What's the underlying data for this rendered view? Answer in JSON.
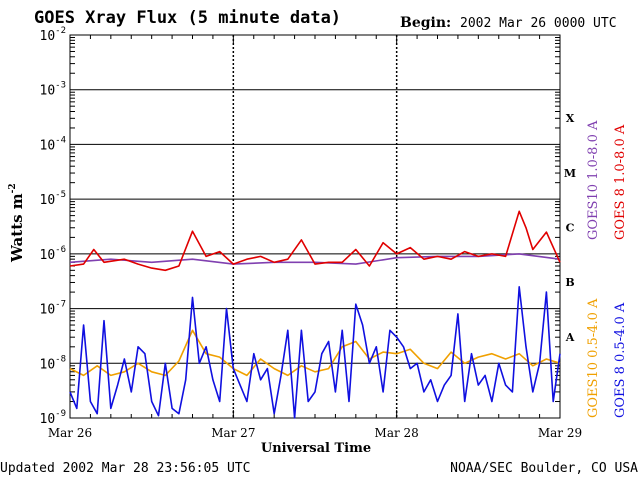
{
  "chart_data": {
    "type": "line",
    "title": "GOES Xray Flux (5 minute data)",
    "begin_label": "Begin:",
    "begin_value": "2002 Mar 26 0000 UTC",
    "xlabel": "Universal Time",
    "ylabel": "Watts m",
    "ylabel_sup": "-2",
    "y_scale": "log",
    "ylim": [
      1e-09,
      0.01
    ],
    "y_ticks": [
      {
        "exp": "-2"
      },
      {
        "exp": "-3"
      },
      {
        "exp": "-4"
      },
      {
        "exp": "-5"
      },
      {
        "exp": "-6"
      },
      {
        "exp": "-7"
      },
      {
        "exp": "-8"
      },
      {
        "exp": "-9"
      }
    ],
    "y_tick_base": "10",
    "x_ticks": [
      "Mar 26",
      "Mar 27",
      "Mar 28",
      "Mar 29"
    ],
    "xlim_hours": [
      0,
      72
    ],
    "flare_classes": [
      "X",
      "M",
      "C",
      "B",
      "A"
    ],
    "grid": true,
    "legend_placement": "right-vertical",
    "series": [
      {
        "name": "GOES10 1.0-8.0 A",
        "color": "#8040b0",
        "x": [
          0,
          6,
          12,
          18,
          24,
          30,
          36,
          42,
          48,
          54,
          60,
          66,
          72
        ],
        "y": [
          7e-07,
          8e-07,
          7e-07,
          8e-07,
          6.5e-07,
          7e-07,
          7e-07,
          6.5e-07,
          8.5e-07,
          9e-07,
          9e-07,
          1e-06,
          8e-07
        ]
      },
      {
        "name": "GOES 8 1.0-8.0 A",
        "color": "#e00000",
        "x": [
          0,
          2,
          3.5,
          5,
          8,
          10,
          12,
          14,
          16,
          18,
          20,
          22,
          24,
          26,
          28,
          30,
          32,
          34,
          36,
          38,
          40,
          42,
          44,
          46,
          48,
          50,
          52,
          54,
          56,
          58,
          60,
          62,
          64,
          66,
          67,
          68,
          70,
          72
        ],
        "y": [
          6e-07,
          6.5e-07,
          1.2e-06,
          7e-07,
          8e-07,
          6.5e-07,
          5.5e-07,
          5e-07,
          6e-07,
          2.6e-06,
          9e-07,
          1.1e-06,
          6.5e-07,
          8e-07,
          9e-07,
          7e-07,
          8e-07,
          1.8e-06,
          6.5e-07,
          7e-07,
          7e-07,
          1.2e-06,
          6e-07,
          1.6e-06,
          1e-06,
          1.3e-06,
          8e-07,
          9e-07,
          8e-07,
          1.1e-06,
          9e-07,
          1e-06,
          9e-07,
          6e-06,
          3e-06,
          1.2e-06,
          2.5e-06,
          7e-07
        ]
      },
      {
        "name": "GOES10 0.5-4.0 A",
        "color": "#f0a000",
        "x": [
          0,
          2,
          4,
          6,
          8,
          10,
          12,
          14,
          16,
          18,
          20,
          22,
          24,
          26,
          28,
          30,
          32,
          34,
          36,
          38,
          40,
          42,
          44,
          46,
          48,
          50,
          52,
          54,
          56,
          58,
          60,
          62,
          64,
          66,
          68,
          70,
          72
        ],
        "y": [
          8e-09,
          6e-09,
          9e-09,
          6e-09,
          7e-09,
          1e-08,
          7e-09,
          6e-09,
          1.1e-08,
          4e-08,
          1.5e-08,
          1.3e-08,
          8e-09,
          6e-09,
          1.2e-08,
          8e-09,
          6e-09,
          9e-09,
          7e-09,
          8e-09,
          2e-08,
          2.5e-08,
          1.2e-08,
          1.6e-08,
          1.5e-08,
          1.8e-08,
          1e-08,
          8e-09,
          1.6e-08,
          1e-08,
          1.3e-08,
          1.5e-08,
          1.2e-08,
          1.5e-08,
          9e-09,
          1.2e-08,
          1e-08
        ]
      },
      {
        "name": "GOES 8 0.5-4.0 A",
        "color": "#1010e0",
        "x": [
          0,
          1,
          2,
          3,
          4,
          5,
          6,
          7,
          8,
          9,
          10,
          11,
          12,
          13,
          14,
          15,
          16,
          17,
          18,
          19,
          20,
          21,
          22,
          23,
          24,
          25,
          26,
          27,
          28,
          29,
          30,
          31,
          32,
          33,
          34,
          35,
          36,
          37,
          38,
          39,
          40,
          41,
          42,
          43,
          44,
          45,
          46,
          47,
          48,
          49,
          50,
          51,
          52,
          53,
          54,
          55,
          56,
          57,
          58,
          59,
          60,
          61,
          62,
          63,
          64,
          65,
          66,
          67,
          68,
          69,
          70,
          71,
          72
        ],
        "y": [
          3e-09,
          1.5e-09,
          5e-08,
          2e-09,
          1.2e-09,
          6e-08,
          1.5e-09,
          4e-09,
          1.2e-08,
          3e-09,
          2e-08,
          1.5e-08,
          2e-09,
          1.1e-09,
          1e-08,
          1.5e-09,
          1.2e-09,
          5e-09,
          1.6e-07,
          1e-08,
          2e-08,
          5e-09,
          2e-09,
          1e-07,
          8e-09,
          4e-09,
          2e-09,
          1.5e-08,
          5e-09,
          8e-09,
          1.2e-09,
          6e-09,
          4e-08,
          1e-09,
          4e-08,
          2e-09,
          3e-09,
          1.5e-08,
          2.5e-08,
          3e-09,
          4e-08,
          2e-09,
          1.2e-07,
          5e-08,
          1e-08,
          2e-08,
          3e-09,
          4e-08,
          3e-08,
          2e-08,
          8e-09,
          1e-08,
          3e-09,
          5e-09,
          2e-09,
          4e-09,
          6e-09,
          8e-08,
          2e-09,
          1.5e-08,
          4e-09,
          6e-09,
          2e-09,
          1e-08,
          4e-09,
          3e-09,
          2.5e-07,
          2e-08,
          3e-09,
          1e-08,
          2e-07,
          2e-09,
          1.5e-08
        ]
      }
    ]
  },
  "footer": {
    "updated": "Updated 2002 Mar 28 23:56:05 UTC",
    "credit": "NOAA/SEC Boulder, CO USA"
  }
}
